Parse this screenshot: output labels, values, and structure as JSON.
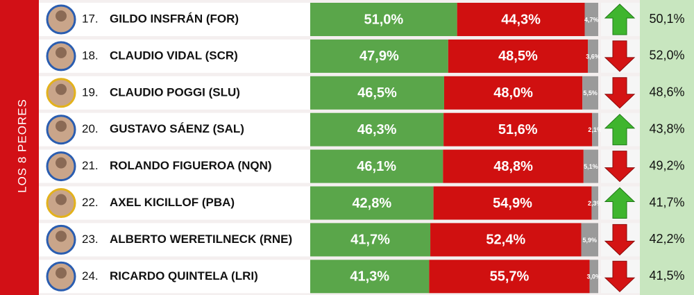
{
  "side_label": "LOS 8 PEORES",
  "rows": [
    {
      "rank": "17.",
      "name": "GILDO INSFRÁN (FOR)",
      "values": [
        51.0,
        44.3,
        4.7
      ],
      "value_labels": [
        "51,0%",
        "44,3%",
        "4,7%"
      ],
      "trend": "up",
      "previous": "50,1%"
    },
    {
      "rank": "18.",
      "name": "CLAUDIO VIDAL (SCR)",
      "values": [
        47.9,
        48.5,
        3.6
      ],
      "value_labels": [
        "47,9%",
        "48,5%",
        "3,6%"
      ],
      "trend": "down",
      "previous": "52,0%"
    },
    {
      "rank": "19.",
      "name": "CLAUDIO POGGI (SLU)",
      "values": [
        46.5,
        48.0,
        5.5
      ],
      "value_labels": [
        "46,5%",
        "48,0%",
        "5,5%"
      ],
      "trend": "down",
      "previous": "48,6%"
    },
    {
      "rank": "20.",
      "name": "GUSTAVO SÁENZ (SAL)",
      "values": [
        46.3,
        51.6,
        2.1
      ],
      "value_labels": [
        "46,3%",
        "51,6%",
        "2,1%"
      ],
      "trend": "up",
      "previous": "43,8%"
    },
    {
      "rank": "21.",
      "name": "ROLANDO FIGUEROA (NQN)",
      "values": [
        46.1,
        48.8,
        5.1
      ],
      "value_labels": [
        "46,1%",
        "48,8%",
        "5,1%"
      ],
      "trend": "down",
      "previous": "49,2%"
    },
    {
      "rank": "22.",
      "name": "AXEL KICILLOF (PBA)",
      "values": [
        42.8,
        54.9,
        2.3
      ],
      "value_labels": [
        "42,8%",
        "54,9%",
        "2,3%"
      ],
      "trend": "up",
      "previous": "41,7%"
    },
    {
      "rank": "23.",
      "name": "ALBERTO WERETILNECK (RNE)",
      "values": [
        41.7,
        52.4,
        5.9
      ],
      "value_labels": [
        "41,7%",
        "52,4%",
        "5,9%"
      ],
      "trend": "down",
      "previous": "42,2%"
    },
    {
      "rank": "24.",
      "name": "RICARDO QUINTELA (LRI)",
      "values": [
        41.3,
        55.7,
        3.0
      ],
      "value_labels": [
        "41,3%",
        "55,7%",
        "3,0%"
      ],
      "trend": "down",
      "previous": "41,5%"
    }
  ]
}
